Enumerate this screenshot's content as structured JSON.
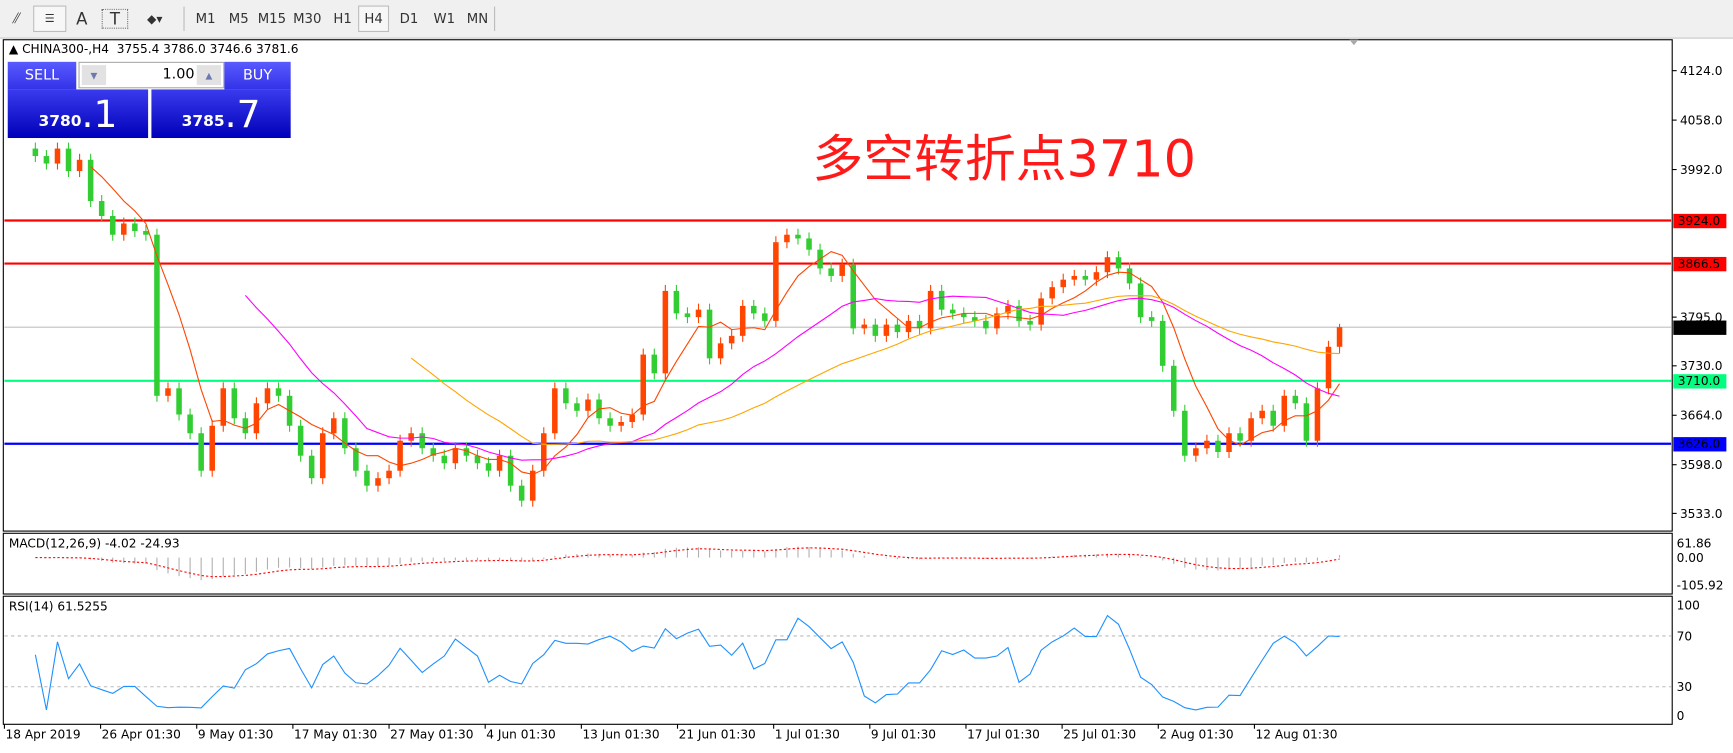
{
  "toolbar": {
    "icons": [
      "line-studies-icon",
      "periods-separator-icon",
      "text-icon",
      "text-label-icon",
      "arrows-icon"
    ],
    "text_icon_label": "A",
    "textlabel_icon_label": "T",
    "timeframes": [
      "M1",
      "M5",
      "M15",
      "M30",
      "H1",
      "H4",
      "D1",
      "W1",
      "MN"
    ],
    "selected_timeframe": "H4"
  },
  "chart": {
    "symbol": "CHINA300-,H4",
    "ohlc": "3755.4 3786.0 3746.6 3781.6",
    "annotation": "多空转折点3710",
    "current_price": "3781.6",
    "price_ticks": [
      "4124.0",
      "4058.0",
      "3992.0",
      "3795.0",
      "3730.0",
      "3664.0",
      "3598.0",
      "3533.0"
    ],
    "levels": [
      {
        "price": 3924.0,
        "label": "3924.0",
        "color": "#ff0000"
      },
      {
        "price": 3866.5,
        "label": "3866.5",
        "color": "#ff0000"
      },
      {
        "price": 3710.0,
        "label": "3710.0",
        "color": "#00ff7f"
      },
      {
        "price": 3626.0,
        "label": "3626.0",
        "color": "#0000ff"
      }
    ],
    "dates": [
      "18 Apr 2019",
      "26 Apr 01:30",
      "9 May 01:30",
      "17 May 01:30",
      "27 May 01:30",
      "4 Jun 01:30",
      "13 Jun 01:30",
      "21 Jun 01:30",
      "1 Jul 01:30",
      "9 Jul 01:30",
      "17 Jul 01:30",
      "25 Jul 01:30",
      "2 Aug 01:30",
      "12 Aug 01:30"
    ],
    "colors": {
      "up": "#ff4500",
      "down": "#32cd32",
      "ma_fast": "#ff4500",
      "ma_mid": "#ff00ff",
      "ma_slow": "#ffa500",
      "rsi": "#1e90ff",
      "macd_signal": "#ff0000"
    }
  },
  "trade": {
    "sell_label": "SELL",
    "buy_label": "BUY",
    "lot": "1.00",
    "sell_big": "3780",
    "sell_small": ".1",
    "buy_big": "3785",
    "buy_small": ".7"
  },
  "macd": {
    "label": "MACD(12,26,9) -4.02 -24.93",
    "ticks": [
      "61.86",
      "0.00",
      "-105.92"
    ]
  },
  "rsi": {
    "label": "RSI(14) 61.5255",
    "ticks": [
      "100",
      "70",
      "30",
      "0"
    ]
  },
  "chart_data": {
    "type": "candlestick",
    "symbol": "CHINA300-",
    "timeframe": "H4",
    "ylim": [
      3533,
      4124
    ],
    "last_bar": {
      "open": 3755.4,
      "high": 3786.0,
      "low": 3746.6,
      "close": 3781.6
    },
    "closes": [
      4010,
      4000,
      4020,
      3990,
      4005,
      3950,
      3930,
      3905,
      3920,
      3910,
      3905,
      3690,
      3700,
      3665,
      3640,
      3590,
      3650,
      3700,
      3660,
      3640,
      3680,
      3700,
      3690,
      3650,
      3610,
      3580,
      3640,
      3660,
      3620,
      3590,
      3570,
      3580,
      3590,
      3630,
      3640,
      3620,
      3610,
      3600,
      3620,
      3610,
      3600,
      3590,
      3610,
      3570,
      3550,
      3590,
      3640,
      3700,
      3680,
      3670,
      3685,
      3660,
      3650,
      3655,
      3665,
      3745,
      3720,
      3830,
      3800,
      3795,
      3805,
      3740,
      3760,
      3770,
      3810,
      3800,
      3790,
      3895,
      3905,
      3900,
      3885,
      3860,
      3850,
      3865,
      3780,
      3785,
      3770,
      3785,
      3775,
      3790,
      3780,
      3830,
      3805,
      3800,
      3795,
      3790,
      3780,
      3800,
      3810,
      3790,
      3785,
      3820,
      3835,
      3845,
      3850,
      3845,
      3855,
      3875,
      3860,
      3840,
      3795,
      3790,
      3730,
      3670,
      3610,
      3620,
      3630,
      3615,
      3640,
      3630,
      3660,
      3670,
      3650,
      3690,
      3680,
      3630,
      3700,
      3755.4,
      3781.6
    ]
  }
}
